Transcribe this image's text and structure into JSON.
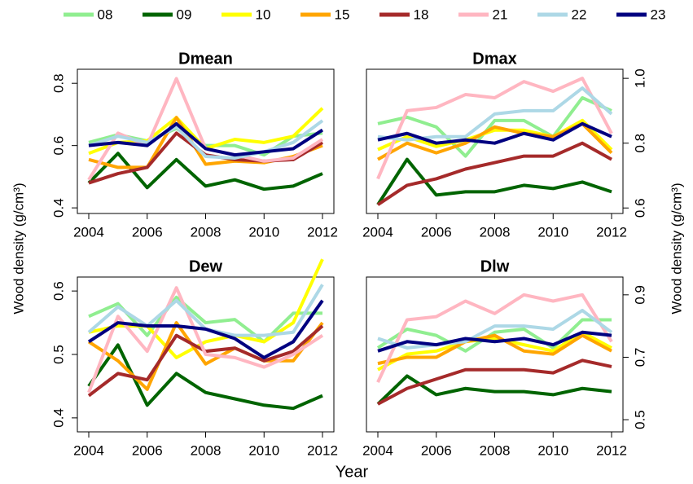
{
  "chart_data": [
    {
      "type": "line",
      "title": "Dmean",
      "yaxis": "left",
      "ylabel": "Wood density (g/cm³)",
      "x": [
        2004,
        2005,
        2006,
        2007,
        2008,
        2009,
        2010,
        2011,
        2012
      ],
      "xlim": [
        2003.61,
        2012.39
      ],
      "xticks": [
        2004,
        2006,
        2008,
        2010,
        2012
      ],
      "ylim": [
        0.382,
        0.845
      ],
      "yticks": [
        0.4,
        0.6,
        0.8
      ],
      "series": [
        {
          "name": "08",
          "color": "#90ee90",
          "values": [
            0.61,
            0.635,
            0.615,
            0.655,
            0.6,
            0.6,
            0.57,
            0.63,
            0.64
          ]
        },
        {
          "name": "09",
          "color": "#006400",
          "values": [
            0.48,
            0.575,
            0.465,
            0.555,
            0.47,
            0.49,
            0.46,
            0.47,
            0.51
          ]
        },
        {
          "name": "10",
          "color": "#ffff00",
          "values": [
            0.575,
            0.61,
            0.615,
            0.69,
            0.59,
            0.62,
            0.61,
            0.63,
            0.72
          ]
        },
        {
          "name": "15",
          "color": "#ffa500",
          "values": [
            0.555,
            0.53,
            0.53,
            0.69,
            0.54,
            0.55,
            0.545,
            0.565,
            0.6
          ]
        },
        {
          "name": "18",
          "color": "#a52a2a",
          "values": [
            0.48,
            0.51,
            0.53,
            0.64,
            0.57,
            0.555,
            0.55,
            0.555,
            0.61
          ]
        },
        {
          "name": "21",
          "color": "#ffb6c1",
          "values": [
            0.49,
            0.64,
            0.6,
            0.815,
            0.59,
            0.57,
            0.55,
            0.56,
            0.62
          ]
        },
        {
          "name": "22",
          "color": "#add8e6",
          "values": [
            0.6,
            0.63,
            0.61,
            0.66,
            0.565,
            0.56,
            0.58,
            0.61,
            0.68
          ]
        },
        {
          "name": "23",
          "color": "#000080",
          "values": [
            0.6,
            0.61,
            0.6,
            0.67,
            0.59,
            0.57,
            0.58,
            0.59,
            0.65
          ]
        }
      ]
    },
    {
      "type": "line",
      "title": "Dmax",
      "yaxis": "right",
      "ylabel": "Wood density (g/cm³)",
      "x": [
        2004,
        2005,
        2006,
        2007,
        2008,
        2009,
        2010,
        2011,
        2012
      ],
      "xlim": [
        2003.61,
        2012.39
      ],
      "xticks": [
        2004,
        2006,
        2008,
        2010,
        2012
      ],
      "ylim": [
        0.583,
        1.028
      ],
      "yticks": [
        0.6,
        0.8,
        {
          "value": 1,
          "label": "1.0"
        }
      ],
      "series": [
        {
          "values": [
            0.86,
            0.88,
            0.85,
            0.76,
            0.87,
            0.87,
            0.82,
            0.94,
            0.9
          ]
        },
        {
          "values": [
            0.61,
            0.75,
            0.64,
            0.65,
            0.65,
            0.67,
            0.66,
            0.68,
            0.65
          ]
        },
        {
          "values": [
            0.78,
            0.82,
            0.79,
            0.81,
            0.84,
            0.84,
            0.82,
            0.87,
            0.78
          ]
        },
        {
          "values": [
            0.75,
            0.8,
            0.77,
            0.8,
            0.85,
            0.83,
            0.82,
            0.86,
            0.77
          ]
        },
        {
          "values": [
            0.61,
            0.67,
            0.69,
            0.72,
            0.74,
            0.76,
            0.76,
            0.8,
            0.75
          ]
        },
        {
          "values": [
            0.69,
            0.9,
            0.91,
            0.95,
            0.94,
            0.99,
            0.96,
            1.0,
            0.83
          ]
        },
        {
          "values": [
            0.82,
            0.81,
            0.82,
            0.82,
            0.89,
            0.9,
            0.9,
            0.97,
            0.89
          ]
        },
        {
          "values": [
            0.81,
            0.83,
            0.8,
            0.81,
            0.8,
            0.83,
            0.81,
            0.86,
            0.82
          ]
        }
      ]
    },
    {
      "type": "line",
      "title": "Dew",
      "yaxis": "left",
      "xlabel": "Year",
      "x": [
        2004,
        2005,
        2006,
        2007,
        2008,
        2009,
        2010,
        2011,
        2012
      ],
      "xlim": [
        2003.61,
        2012.39
      ],
      "xticks": [
        2004,
        2006,
        2008,
        2010,
        2012
      ],
      "ylim": [
        0.378,
        0.622
      ],
      "yticks": [
        0.4,
        0.5,
        0.6
      ],
      "series": [
        {
          "values": [
            0.56,
            0.58,
            0.53,
            0.59,
            0.55,
            0.555,
            0.52,
            0.565,
            0.565
          ]
        },
        {
          "values": [
            0.45,
            0.515,
            0.42,
            0.47,
            0.44,
            0.43,
            0.42,
            0.415,
            0.435
          ]
        },
        {
          "values": [
            0.535,
            0.545,
            0.545,
            0.495,
            0.52,
            0.53,
            0.52,
            0.55,
            0.65
          ]
        },
        {
          "values": [
            0.52,
            0.49,
            0.445,
            0.55,
            0.485,
            0.51,
            0.49,
            0.49,
            0.55
          ]
        },
        {
          "values": [
            0.435,
            0.47,
            0.46,
            0.53,
            0.505,
            0.51,
            0.49,
            0.505,
            0.545
          ]
        },
        {
          "values": [
            0.44,
            0.56,
            0.505,
            0.605,
            0.5,
            0.495,
            0.48,
            0.5,
            0.53
          ]
        },
        {
          "values": [
            0.535,
            0.575,
            0.545,
            0.585,
            0.54,
            0.53,
            0.53,
            0.535,
            0.61
          ]
        },
        {
          "values": [
            0.52,
            0.55,
            0.545,
            0.545,
            0.54,
            0.525,
            0.495,
            0.52,
            0.585
          ]
        }
      ]
    },
    {
      "type": "line",
      "title": "Dlw",
      "yaxis": "right",
      "x": [
        2004,
        2005,
        2006,
        2007,
        2008,
        2009,
        2010,
        2011,
        2012
      ],
      "xlim": [
        2003.61,
        2012.39
      ],
      "xticks": [
        2004,
        2006,
        2008,
        2010,
        2012
      ],
      "ylim": [
        0.461,
        0.957
      ],
      "yticks": [
        0.5,
        0.7,
        0.9
      ],
      "series": [
        {
          "values": [
            0.73,
            0.79,
            0.77,
            0.72,
            0.78,
            0.79,
            0.73,
            0.82,
            0.82
          ]
        },
        {
          "values": [
            0.55,
            0.64,
            0.58,
            0.6,
            0.59,
            0.59,
            0.58,
            0.6,
            0.59
          ]
        },
        {
          "values": [
            0.66,
            0.71,
            0.72,
            0.75,
            0.76,
            0.74,
            0.72,
            0.78,
            0.73
          ]
        },
        {
          "values": [
            0.68,
            0.7,
            0.7,
            0.75,
            0.77,
            0.72,
            0.71,
            0.77,
            0.72
          ]
        },
        {
          "values": [
            0.55,
            0.6,
            0.63,
            0.66,
            0.66,
            0.66,
            0.65,
            0.69,
            0.67
          ]
        },
        {
          "values": [
            0.62,
            0.82,
            0.83,
            0.88,
            0.84,
            0.9,
            0.88,
            0.9,
            0.75
          ]
        },
        {
          "values": [
            0.76,
            0.73,
            0.74,
            0.75,
            0.8,
            0.8,
            0.79,
            0.85,
            0.78
          ]
        },
        {
          "values": [
            0.72,
            0.75,
            0.74,
            0.76,
            0.75,
            0.76,
            0.74,
            0.78,
            0.77
          ]
        }
      ]
    }
  ]
}
